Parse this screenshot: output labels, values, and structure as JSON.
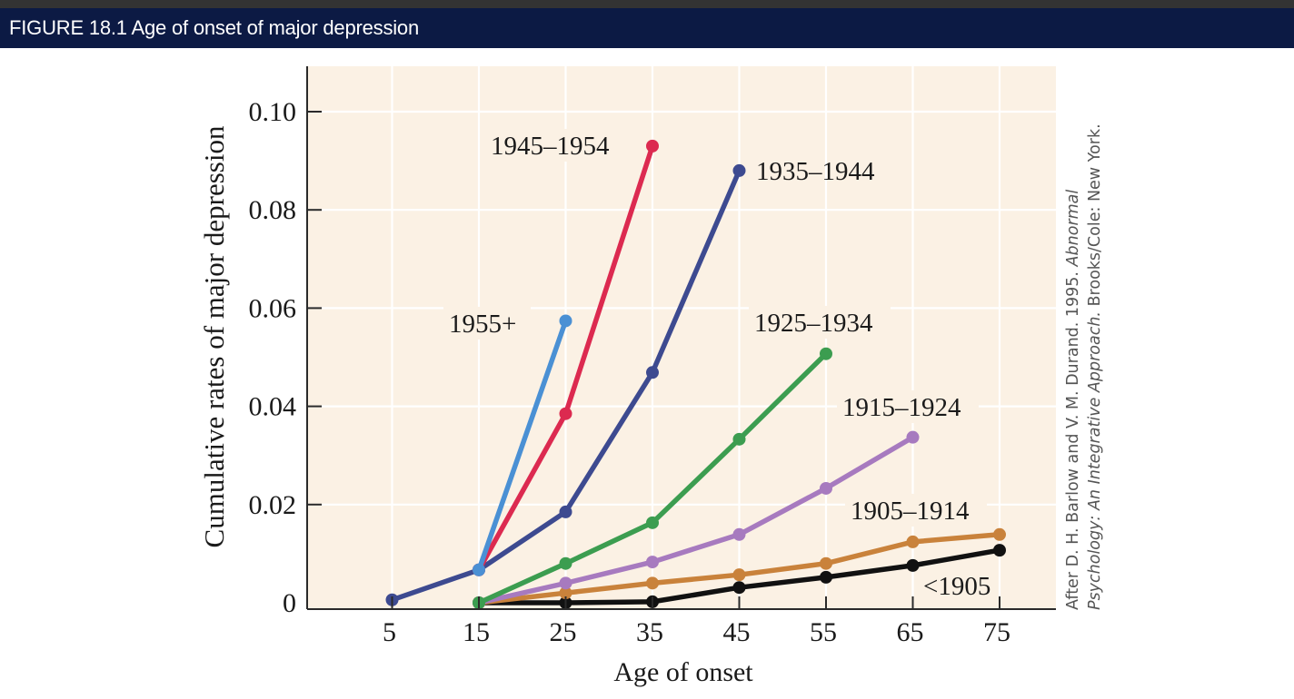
{
  "header": {
    "title": "FIGURE 18.1  Age of onset of major depression"
  },
  "credit": {
    "line1_prefix": "After D. H. Barlow and V. M. Durand. 1995. ",
    "line1_italic": "Abnormal",
    "line2_italic": "Psychology: An Integrative Approach.",
    "line2_suffix": " Brooks/Cole: New York."
  },
  "colors": {
    "plot_background": "#fbf1e4",
    "gridline": "#ffffff",
    "axis": "#2a2a2a",
    "header_background": "#0c1a44"
  },
  "chart_data": {
    "type": "line",
    "title": "Age of onset of major depression",
    "xlabel": "Age of onset",
    "ylabel": "Cumulative rates of major depression",
    "x_ticks": [
      5,
      15,
      25,
      35,
      45,
      55,
      65,
      75
    ],
    "x_tick_labels": [
      "5",
      "15",
      "25",
      "35",
      "45",
      "55",
      "65",
      "75"
    ],
    "y_ticks": [
      0,
      0.02,
      0.04,
      0.06,
      0.08,
      0.1
    ],
    "y_tick_labels": [
      "0",
      "0.02",
      "0.04",
      "0.06",
      "0.08",
      "0.10"
    ],
    "xlim": [
      -2,
      81
    ],
    "ylim": [
      -0.0015,
      0.1075
    ],
    "grid": true,
    "legend": "inline labels next to each series",
    "series": [
      {
        "name": "1955+",
        "color": "#4a90d4",
        "x": [
          15,
          25
        ],
        "y": [
          0.0067,
          0.0574
        ]
      },
      {
        "name": "1945–1954",
        "color": "#dc2a50",
        "x": [
          15,
          25,
          35
        ],
        "y": [
          0.0067,
          0.0385,
          0.093
        ]
      },
      {
        "name": "1935–1944",
        "color": "#3d4a90",
        "x": [
          5,
          15,
          25,
          35,
          45
        ],
        "y": [
          0.0006,
          0.0067,
          0.0185,
          0.0469,
          0.088
        ]
      },
      {
        "name": "1925–1934",
        "color": "#3c9d50",
        "x": [
          15,
          25,
          35,
          45,
          55
        ],
        "y": [
          0.0,
          0.008,
          0.0163,
          0.0333,
          0.0507
        ]
      },
      {
        "name": "1915–1924",
        "color": "#a77abf",
        "x": [
          15,
          25,
          35,
          45,
          55,
          65
        ],
        "y": [
          0.0,
          0.004,
          0.0083,
          0.0139,
          0.0233,
          0.0337
        ]
      },
      {
        "name": "1905–1914",
        "color": "#c9823b",
        "x": [
          15,
          25,
          35,
          45,
          55,
          65,
          75
        ],
        "y": [
          0.0,
          0.002,
          0.004,
          0.0057,
          0.008,
          0.0124,
          0.0139
        ]
      },
      {
        "name": "<1905",
        "color": "#111111",
        "x": [
          15,
          25,
          35,
          45,
          55,
          65,
          75
        ],
        "y": [
          0.0,
          0.0,
          0.0002,
          0.0031,
          0.0052,
          0.0076,
          0.0107
        ]
      }
    ],
    "annotations": [
      {
        "text": "1955+",
        "near_series": "1955+"
      },
      {
        "text": "1945–1954",
        "near_series": "1945–1954"
      },
      {
        "text": "1935–1944",
        "near_series": "1935–1944"
      },
      {
        "text": "1925–1934",
        "near_series": "1925–1934"
      },
      {
        "text": "1915–1924",
        "near_series": "1915–1924"
      },
      {
        "text": "1905–1914",
        "near_series": "1905–1914"
      },
      {
        "text": "<1905",
        "near_series": "<1905"
      }
    ]
  }
}
